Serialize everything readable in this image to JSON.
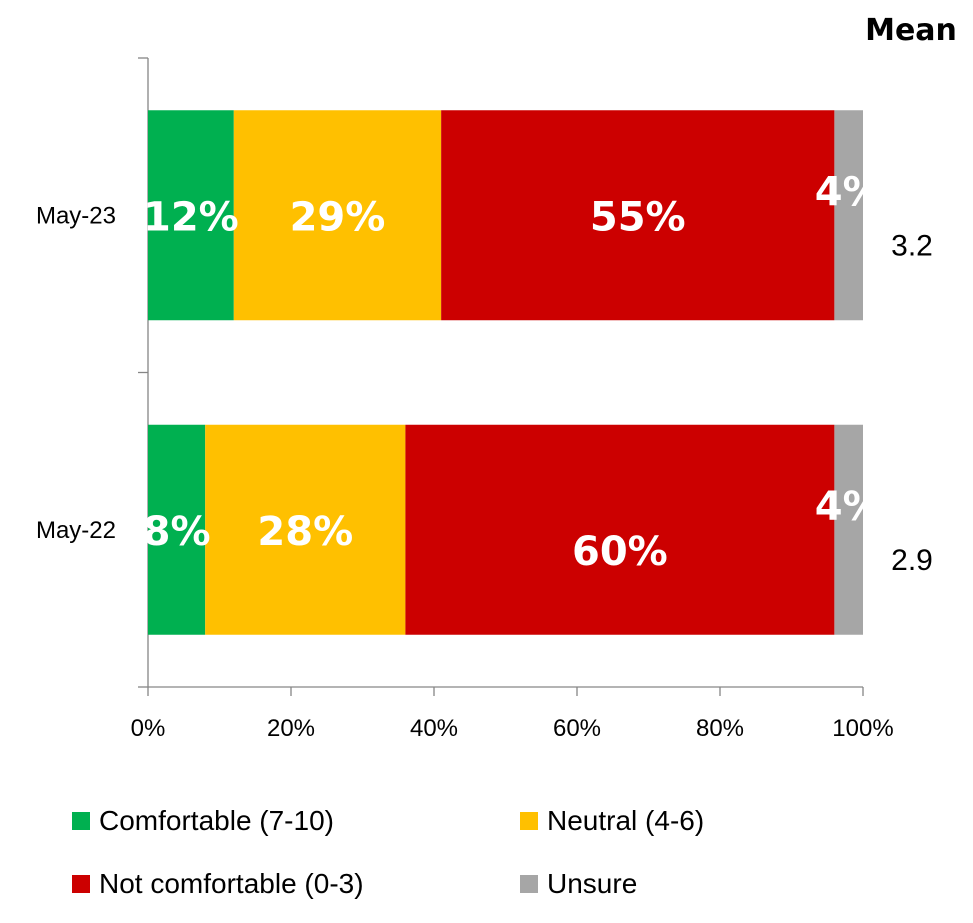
{
  "chart_data": {
    "type": "bar",
    "orientation": "horizontal",
    "stacked": true,
    "categories": [
      "May-23",
      "May-22"
    ],
    "series": [
      {
        "name": "Comfortable (7-10)",
        "color": "#00b050",
        "values": [
          12,
          8
        ],
        "labels": [
          "12%",
          "8%"
        ]
      },
      {
        "name": "Neutral (4-6)",
        "color": "#ffc000",
        "values": [
          29,
          28
        ],
        "labels": [
          "29%",
          "28%"
        ]
      },
      {
        "name": "Not comfortable (0-3)",
        "color": "#cc0000",
        "values": [
          55,
          60
        ],
        "labels": [
          "55%",
          "60%"
        ]
      },
      {
        "name": "Unsure",
        "color": "#a6a6a6",
        "values": [
          4,
          4
        ],
        "labels": [
          "4%",
          "4%"
        ]
      }
    ],
    "xlim": [
      0,
      100
    ],
    "xticks": [
      "0%",
      "20%",
      "40%",
      "60%",
      "80%",
      "100%"
    ],
    "grid": false,
    "legend": "bottom",
    "mean": {
      "header": "Mean",
      "values": [
        "3.2",
        "2.9"
      ]
    }
  }
}
